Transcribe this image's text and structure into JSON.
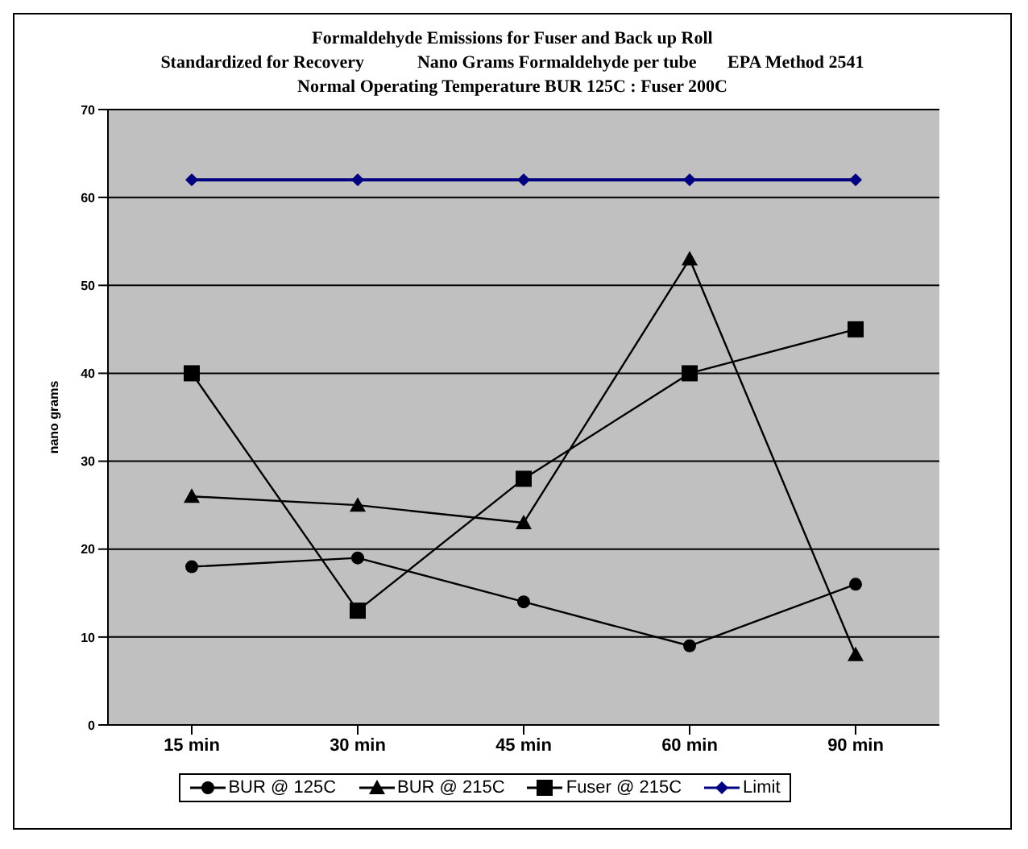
{
  "chart_data": {
    "type": "line",
    "title": "Formaldehyde Emissions for Fuser and Back up Roll",
    "subtitle": "Standardized for Recovery            Nano Grams Formaldehyde per tube       EPA Method 2541\nNormal Operating Temperature BUR 125C : Fuser 200C",
    "ylabel": "nano grams",
    "categories": [
      "15 min",
      "30 min",
      "45 min",
      "60 min",
      "90 min"
    ],
    "series": [
      {
        "name": "BUR @ 125C",
        "color": "#000000",
        "marker": "circle",
        "values": [
          18,
          19,
          14,
          9,
          16
        ]
      },
      {
        "name": "BUR @ 215C",
        "color": "#000000",
        "marker": "triangle",
        "values": [
          26,
          25,
          23,
          53,
          8
        ]
      },
      {
        "name": "Fuser @ 215C",
        "color": "#000000",
        "marker": "square",
        "values": [
          40,
          13,
          28,
          40,
          45
        ]
      },
      {
        "name": "Limit",
        "color": "#000080",
        "marker": "diamond",
        "values": [
          62,
          62,
          62,
          62,
          62
        ]
      }
    ],
    "ylim": [
      0,
      70
    ],
    "yticks": [
      0,
      10,
      20,
      30,
      40,
      50,
      60,
      70
    ],
    "grid": "y",
    "legend": "bottom",
    "line_style": "solid"
  }
}
